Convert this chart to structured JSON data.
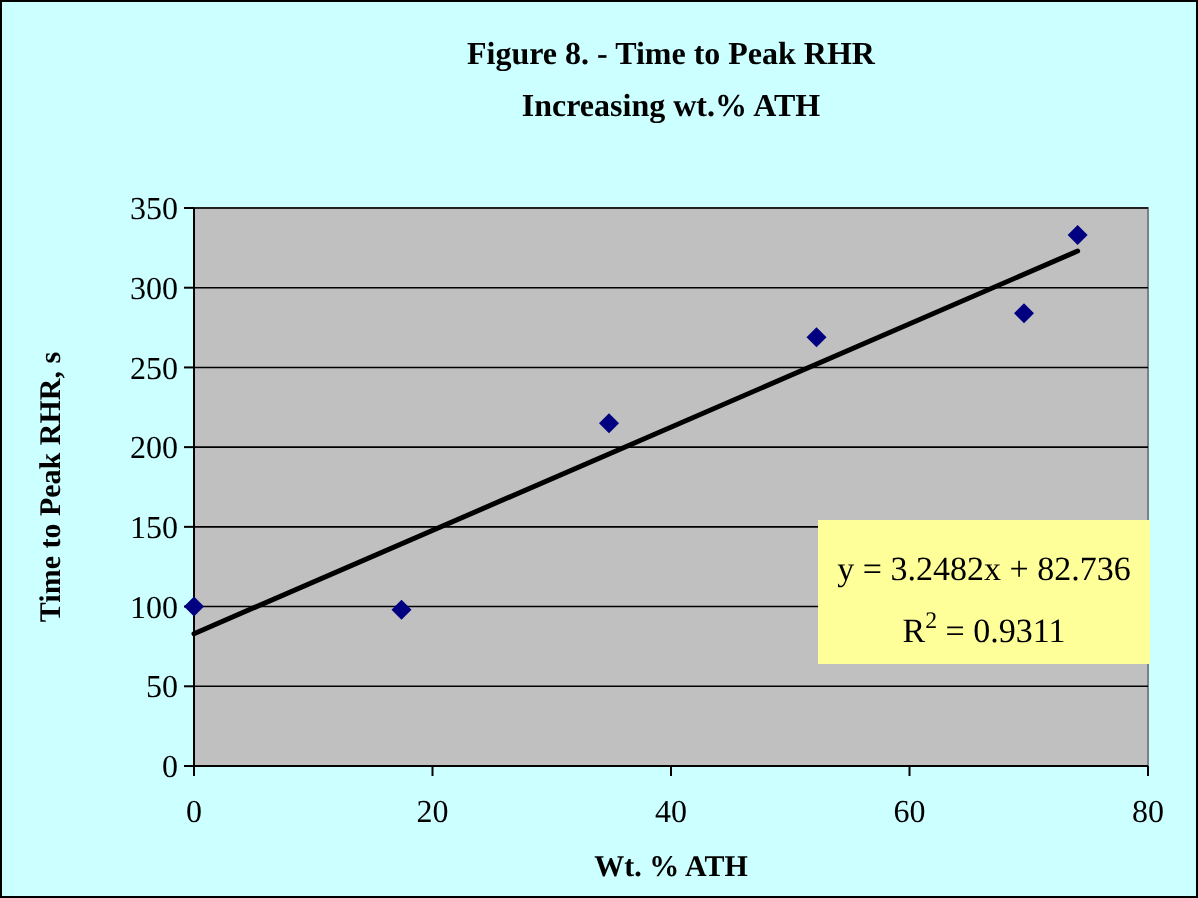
{
  "chart_data": {
    "type": "scatter",
    "title": "Figure 8. - Time to Peak RHR",
    "subtitle": "Increasing wt.% ATH",
    "xlabel": "Wt. % ATH",
    "ylabel": "Time to Peak RHR, s",
    "series": [
      {
        "color": "#000080",
        "marker": "diamond",
        "x": [
          0,
          17.4,
          34.8,
          52.2,
          69.6,
          74.1
        ],
        "values": [
          100,
          98,
          215,
          269,
          284,
          333
        ]
      },
      {
        "type": "line",
        "color": "#000000",
        "marker": "none",
        "line_style": "solid",
        "x": [
          0,
          74.1
        ],
        "values": [
          83,
          323
        ]
      }
    ],
    "xlim": [
      0,
      80
    ],
    "xticks": [
      0,
      20,
      40,
      60,
      80
    ],
    "ylim": [
      0,
      350
    ],
    "yticks": [
      0,
      50,
      100,
      150,
      200,
      250,
      300,
      350
    ],
    "grid": "y",
    "annotations": [
      "y = 3.2482x + 82.736",
      "R$^{2}$ = 0.9311"
    ]
  }
}
